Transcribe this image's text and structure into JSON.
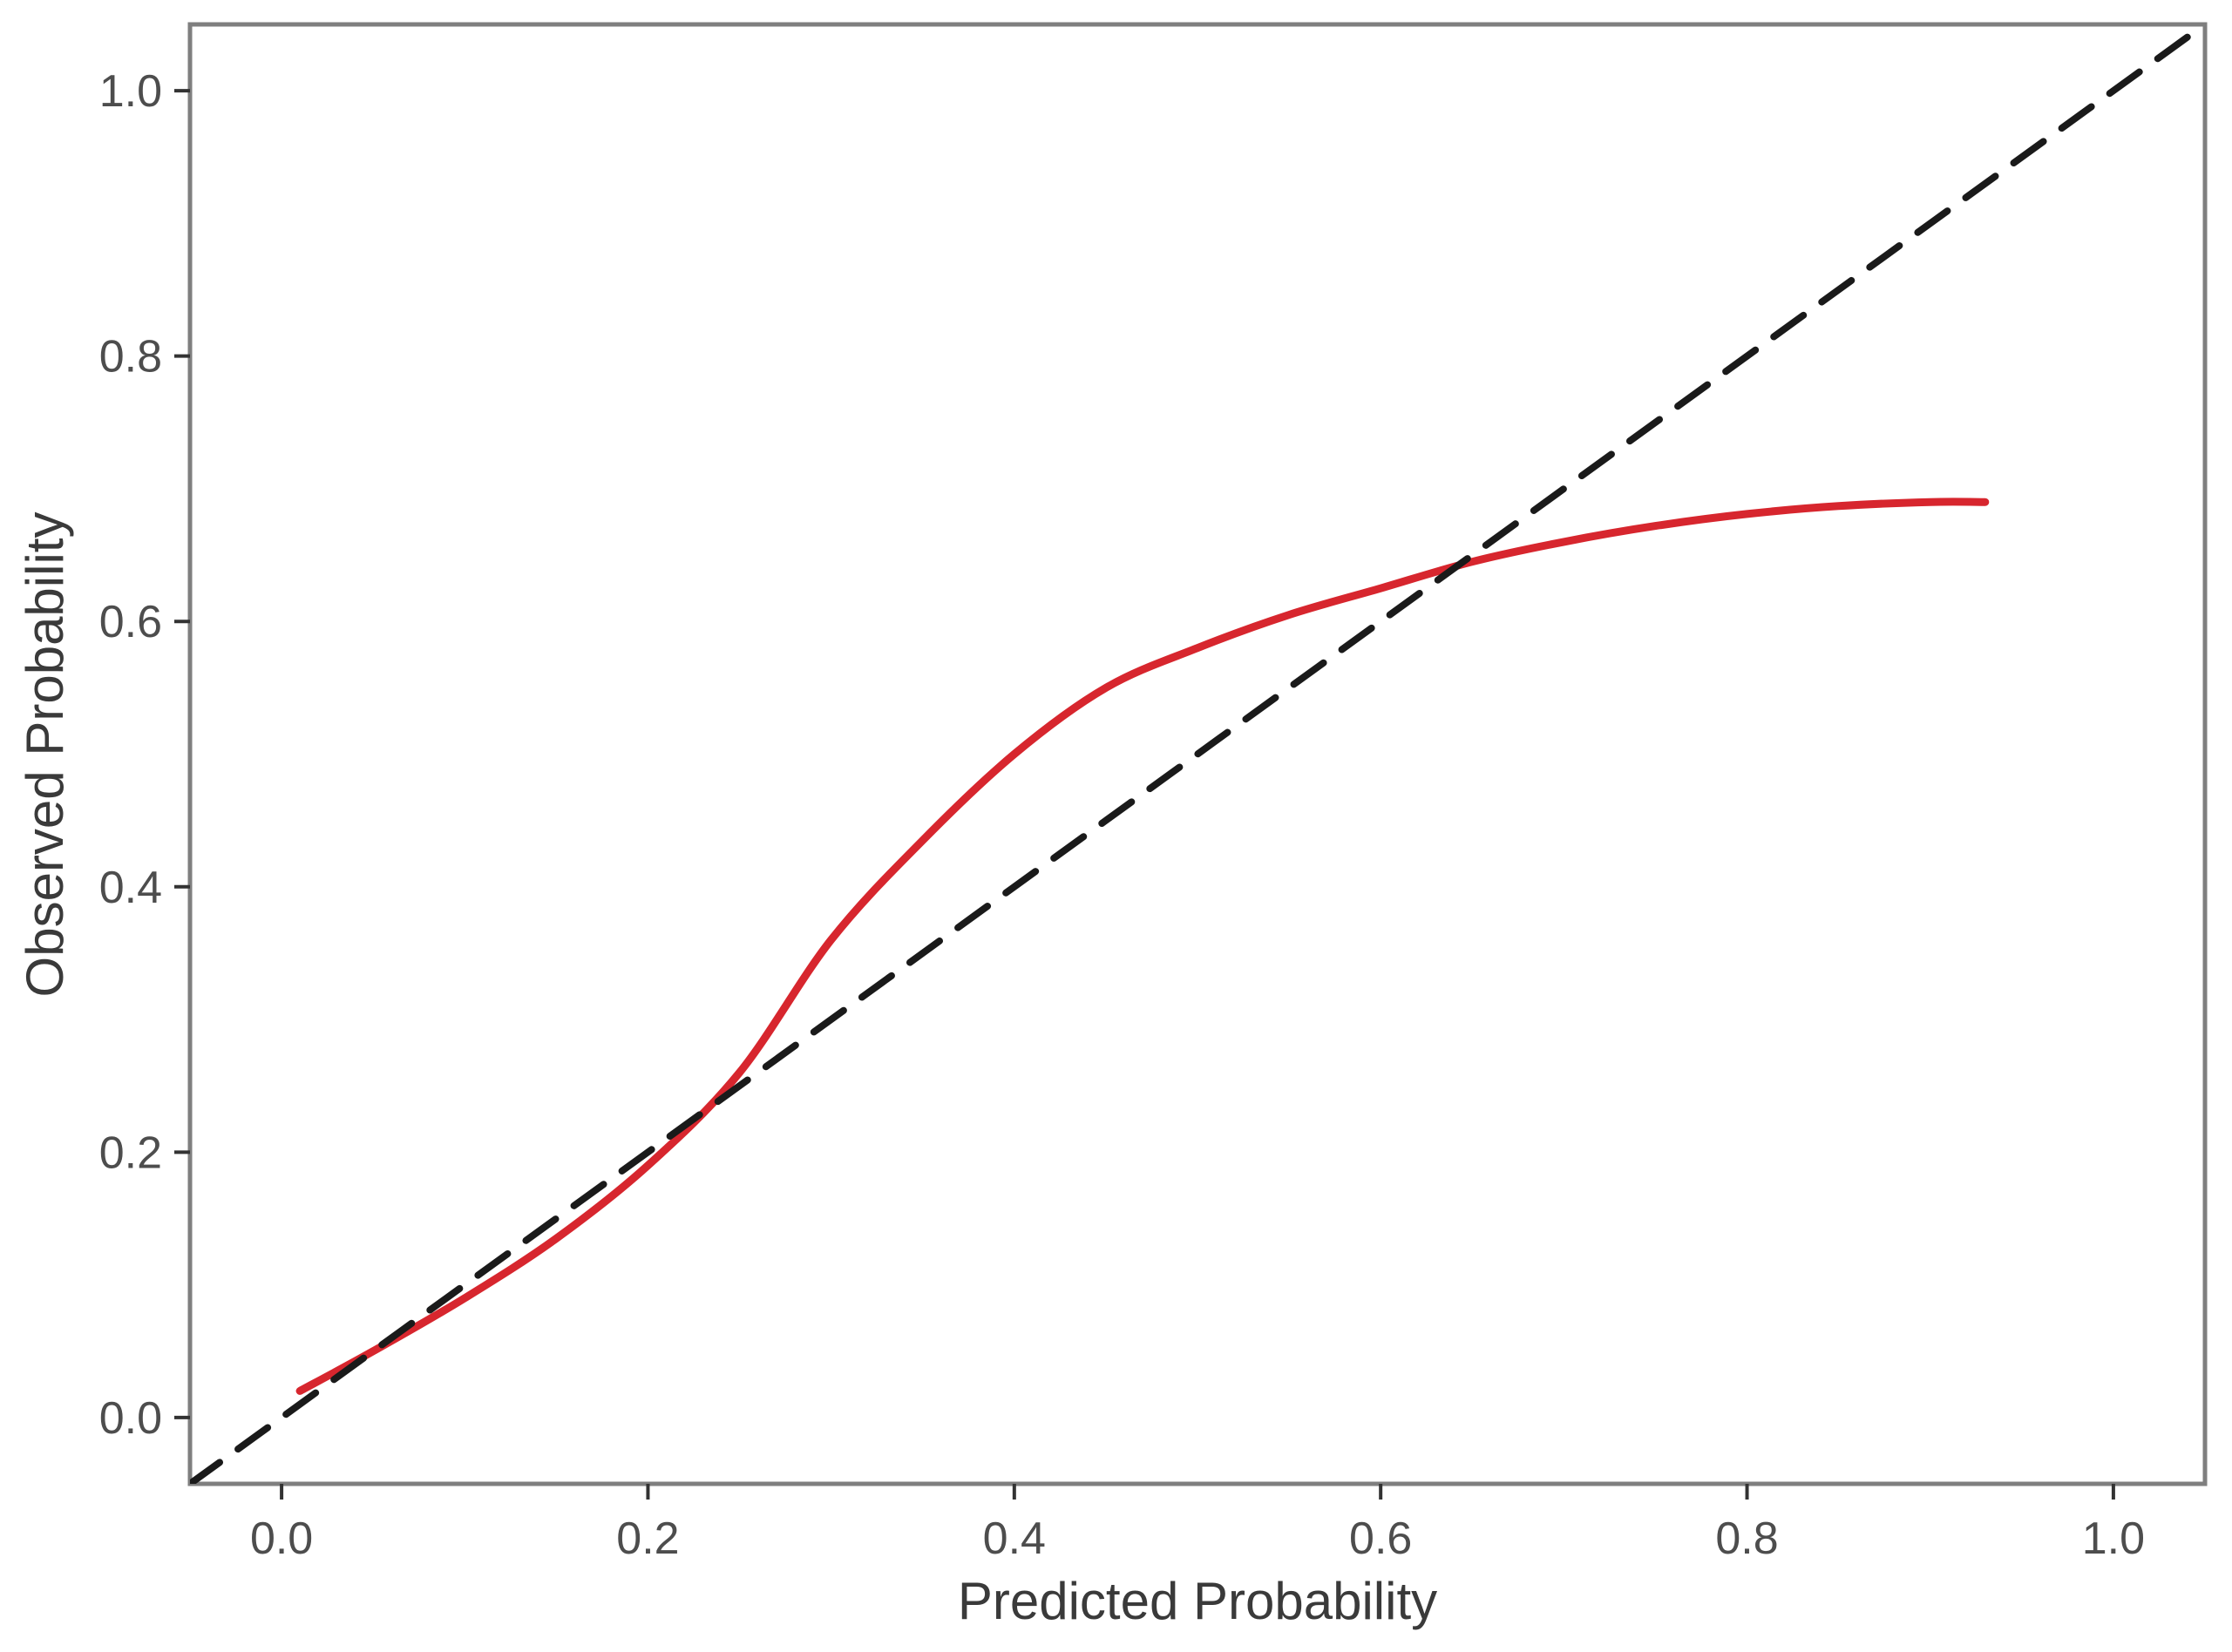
{
  "chart_data": {
    "type": "line",
    "title": "",
    "xlabel": "Predicted Probability",
    "ylabel": "Observed Probability",
    "xlim": [
      -0.05,
      1.05
    ],
    "ylim": [
      -0.05,
      1.05
    ],
    "x_ticks": [
      "0.0",
      "0.2",
      "0.4",
      "0.6",
      "0.8",
      "1.0"
    ],
    "y_ticks": [
      "0.0",
      "0.2",
      "0.4",
      "0.6",
      "0.8",
      "1.0"
    ],
    "grid": false,
    "legend": "none",
    "series": [
      {
        "color": "#d7262e",
        "style": "solid",
        "x": [
          0.01,
          0.05,
          0.1,
          0.15,
          0.2,
          0.25,
          0.3,
          0.35,
          0.4,
          0.45,
          0.5,
          0.55,
          0.6,
          0.65,
          0.7,
          0.75,
          0.8,
          0.85,
          0.9,
          0.93
        ],
        "y": [
          0.02,
          0.05,
          0.09,
          0.135,
          0.19,
          0.26,
          0.36,
          0.435,
          0.5,
          0.55,
          0.58,
          0.605,
          0.625,
          0.645,
          0.66,
          0.672,
          0.681,
          0.687,
          0.69,
          0.69
        ]
      },
      {
        "color": "#1a1a1a",
        "style": "dashed",
        "x": [
          -0.05,
          1.05
        ],
        "y": [
          -0.05,
          1.05
        ]
      }
    ]
  }
}
